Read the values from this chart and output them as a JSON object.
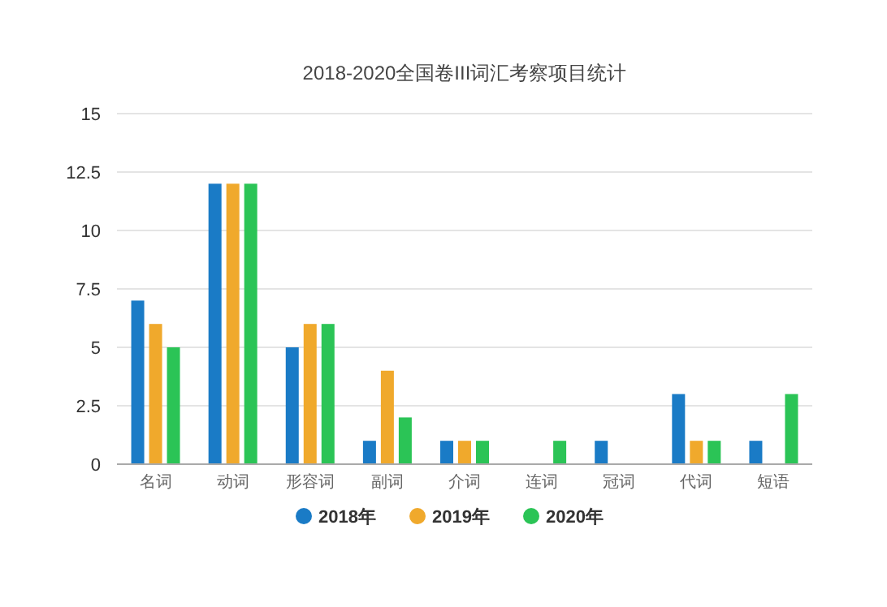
{
  "chart_data": {
    "type": "bar",
    "title": "2018-2020全国卷III词汇考察项目统计",
    "categories": [
      "名词",
      "动词",
      "形容词",
      "副词",
      "介词",
      "连词",
      "冠词",
      "代词",
      "短语"
    ],
    "series": [
      {
        "name": "2018年",
        "color": "#1a7bc6",
        "values": [
          7,
          12,
          5,
          1,
          1,
          0,
          1,
          3,
          1
        ]
      },
      {
        "name": "2019年",
        "color": "#f0a92c",
        "values": [
          6,
          12,
          6,
          4,
          1,
          0,
          0,
          1,
          0
        ]
      },
      {
        "name": "2020年",
        "color": "#2bc456",
        "values": [
          5,
          12,
          6,
          2,
          1,
          1,
          0,
          1,
          3
        ]
      }
    ],
    "ylim": [
      0,
      15
    ],
    "yticks": [
      0,
      2.5,
      5,
      7.5,
      10,
      12.5,
      15
    ],
    "grid": "y",
    "legend": "bottom"
  }
}
